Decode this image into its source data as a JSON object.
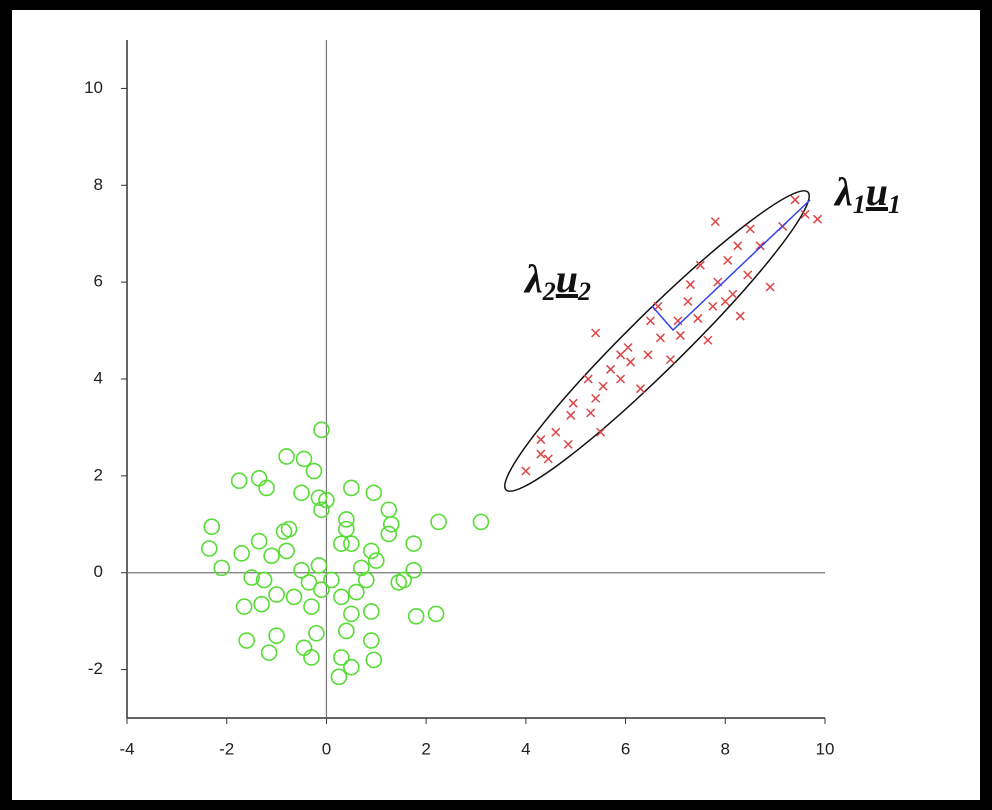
{
  "chart_data": {
    "type": "scatter",
    "xlim": [
      -4,
      10
    ],
    "xticks": [
      -4,
      -2,
      0,
      2,
      4,
      6,
      8,
      10
    ],
    "ylim": [
      -3,
      11
    ],
    "yticks": [
      -2,
      0,
      2,
      4,
      6,
      8,
      10
    ],
    "series": [
      {
        "color": "#55dd33",
        "marker": "circle",
        "x": [
          -0.1,
          -1.75,
          -1.35,
          -1.2,
          -0.8,
          -0.45,
          -0.25,
          -0.5,
          -0.15,
          0,
          -0.1,
          0.5,
          0.95,
          1.25,
          1.3,
          2.25,
          3.1,
          -2.3,
          -2.35,
          -2.1,
          -1.7,
          -1.35,
          -0.85,
          -0.75,
          -0.8,
          0.4,
          0.3,
          0.5,
          0.4,
          0.9,
          1.0,
          1.75,
          1.25,
          -1.5,
          -1.25,
          -1.1,
          -0.5,
          -0.35,
          -0.15,
          0.1,
          0.7,
          0.8,
          1.45,
          1.55,
          1.75,
          -1.65,
          -1.3,
          -1.0,
          -0.65,
          -0.3,
          0.3,
          0.5,
          0.9,
          1.8,
          2.2,
          -1.0,
          -0.2,
          0.4,
          0.9,
          -1.6,
          -1.15,
          -0.45,
          -0.3,
          0.3,
          0.95,
          0.25,
          0.5,
          -0.1,
          0.6
        ],
        "values": [
          2.95,
          1.9,
          1.95,
          1.75,
          2.4,
          2.35,
          2.1,
          1.65,
          1.55,
          1.5,
          1.3,
          1.75,
          1.65,
          1.3,
          1.0,
          1.05,
          1.05,
          0.95,
          0.5,
          0.1,
          0.4,
          0.65,
          0.85,
          0.9,
          0.45,
          1.1,
          0.6,
          0.6,
          0.9,
          0.45,
          0.25,
          0.6,
          0.8,
          -0.1,
          -0.15,
          0.35,
          0.05,
          -0.2,
          0.15,
          -0.15,
          0.1,
          -0.15,
          -0.2,
          -0.15,
          0.05,
          -0.7,
          -0.65,
          -0.45,
          -0.5,
          -0.7,
          -0.5,
          -0.85,
          -0.8,
          -0.9,
          -0.85,
          -1.3,
          -1.25,
          -1.2,
          -1.4,
          -1.4,
          -1.65,
          -1.55,
          -1.75,
          -1.75,
          -1.8,
          -2.15,
          -1.95,
          -0.35,
          -0.4
        ]
      },
      {
        "color": "#dd4444",
        "marker": "x",
        "x": [
          4.0,
          4.3,
          4.3,
          4.6,
          4.85,
          4.9,
          5.3,
          5.5,
          5.4,
          5.55,
          5.25,
          5.7,
          5.4,
          5.9,
          6.1,
          6.05,
          6.3,
          6.45,
          6.7,
          6.65,
          6.9,
          7.1,
          7.25,
          7.45,
          7.65,
          7.75,
          7.85,
          7.8,
          8.05,
          8.25,
          8.3,
          8.45,
          8.5,
          8.7,
          8.9,
          9.15,
          9.4,
          9.6,
          9.85,
          8.15,
          7.5,
          7.3,
          4.95,
          4.45,
          5.9,
          6.5,
          7.05,
          8.0
        ],
        "values": [
          2.1,
          2.45,
          2.75,
          2.9,
          2.65,
          3.25,
          3.3,
          2.9,
          3.6,
          3.85,
          4.0,
          4.2,
          4.95,
          4.0,
          4.35,
          4.65,
          3.8,
          4.5,
          4.85,
          5.5,
          4.4,
          4.9,
          5.6,
          5.25,
          4.8,
          5.5,
          6.0,
          7.25,
          6.45,
          6.75,
          5.3,
          6.15,
          7.1,
          6.75,
          5.9,
          7.15,
          7.7,
          7.4,
          7.3,
          5.75,
          6.35,
          5.95,
          3.5,
          2.35,
          4.5,
          5.2,
          5.2,
          5.6
        ]
      }
    ],
    "annotations": [
      {
        "lambda": "λ",
        "lambda_sub": "1",
        "vector": "u",
        "vector_sub": "1"
      },
      {
        "lambda": "λ",
        "lambda_sub": "2",
        "vector": "u",
        "vector_sub": "2"
      }
    ]
  }
}
